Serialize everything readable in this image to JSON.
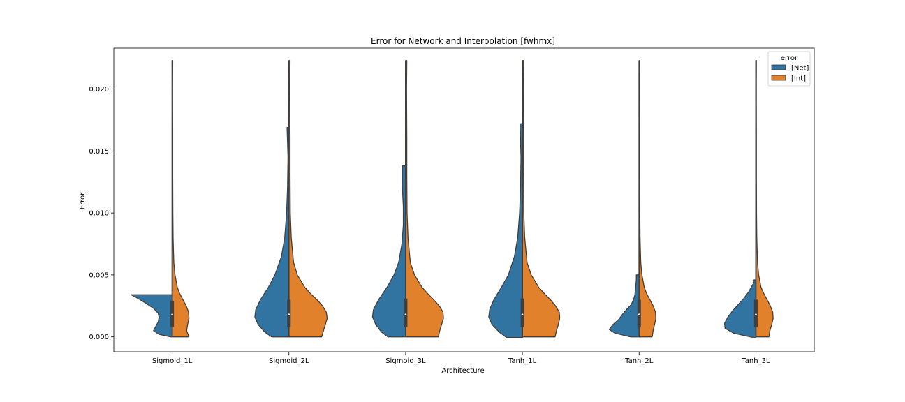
{
  "chart_data": {
    "type": "violin",
    "title": "Error for Network and Interpolation [fwhmx]",
    "xlabel": "Architecture",
    "ylabel": "Error",
    "ylim": [
      -0.0012,
      0.0233
    ],
    "yticks": [
      "0.000",
      "0.005",
      "0.010",
      "0.015",
      "0.020"
    ],
    "ytick_values": [
      0,
      0.005,
      0.01,
      0.015,
      0.02
    ],
    "categories": [
      "Sigmoid_1L",
      "Sigmoid_2L",
      "Sigmoid_3L",
      "Tanh_1L",
      "Tanh_2L",
      "Tanh_3L"
    ],
    "split": true,
    "grid": false,
    "legend": {
      "title": "error",
      "position": "top-right"
    },
    "series": [
      {
        "name": "[Net]",
        "color": "#3274a1",
        "violins": [
          {
            "min": 0.0,
            "max": 0.0034,
            "q1": 0.0008,
            "median": 0.0018,
            "q3": 0.0029,
            "profile": [
              [
                0.0,
                0.03
              ],
              [
                0.0002,
                0.28
              ],
              [
                0.0005,
                0.4
              ],
              [
                0.0008,
                0.36
              ],
              [
                0.0012,
                0.3
              ],
              [
                0.0016,
                0.28
              ],
              [
                0.0019,
                0.3
              ],
              [
                0.0023,
                0.4
              ],
              [
                0.0027,
                0.56
              ],
              [
                0.0031,
                0.73
              ],
              [
                0.0034,
                0.88
              ],
              [
                0.0034,
                0.0
              ]
            ]
          },
          {
            "min": 0.0,
            "max": 0.0169,
            "q1": 0.0008,
            "median": 0.0018,
            "q3": 0.003,
            "profile": [
              [
                0.0,
                0.37
              ],
              [
                0.0004,
                0.52
              ],
              [
                0.001,
                0.66
              ],
              [
                0.0016,
                0.73
              ],
              [
                0.0022,
                0.71
              ],
              [
                0.003,
                0.61
              ],
              [
                0.004,
                0.44
              ],
              [
                0.005,
                0.3
              ],
              [
                0.0065,
                0.16
              ],
              [
                0.008,
                0.09
              ],
              [
                0.01,
                0.05
              ],
              [
                0.012,
                0.03
              ],
              [
                0.0145,
                0.02
              ],
              [
                0.0169,
                0.04
              ],
              [
                0.0169,
                0.0
              ]
            ]
          },
          {
            "min": 0.0,
            "max": 0.0138,
            "q1": 0.0008,
            "median": 0.0018,
            "q3": 0.0031,
            "profile": [
              [
                0.0,
                0.38
              ],
              [
                0.0004,
                0.52
              ],
              [
                0.001,
                0.64
              ],
              [
                0.0016,
                0.71
              ],
              [
                0.0022,
                0.69
              ],
              [
                0.003,
                0.58
              ],
              [
                0.004,
                0.4
              ],
              [
                0.005,
                0.25
              ],
              [
                0.006,
                0.15
              ],
              [
                0.0075,
                0.08
              ],
              [
                0.009,
                0.05
              ],
              [
                0.0105,
                0.05
              ],
              [
                0.012,
                0.07
              ],
              [
                0.0133,
                0.07
              ],
              [
                0.0138,
                0.07
              ],
              [
                0.0138,
                0.0
              ]
            ]
          },
          {
            "min": -5e-05,
            "max": 0.0172,
            "q1": 0.0008,
            "median": 0.0018,
            "q3": 0.0031,
            "profile": [
              [
                -5e-05,
                0.34
              ],
              [
                0.0004,
                0.5
              ],
              [
                0.001,
                0.65
              ],
              [
                0.0016,
                0.72
              ],
              [
                0.0022,
                0.7
              ],
              [
                0.003,
                0.61
              ],
              [
                0.004,
                0.45
              ],
              [
                0.005,
                0.3
              ],
              [
                0.0065,
                0.17
              ],
              [
                0.008,
                0.1
              ],
              [
                0.01,
                0.06
              ],
              [
                0.012,
                0.04
              ],
              [
                0.0145,
                0.03
              ],
              [
                0.0172,
                0.05
              ],
              [
                0.0172,
                0.0
              ]
            ]
          },
          {
            "min": 0.0,
            "max": 0.005,
            "q1": 0.0008,
            "median": 0.0018,
            "q3": 0.003,
            "profile": [
              [
                0.0,
                0.18
              ],
              [
                0.0003,
                0.52
              ],
              [
                0.0006,
                0.64
              ],
              [
                0.001,
                0.56
              ],
              [
                0.0014,
                0.44
              ],
              [
                0.0018,
                0.36
              ],
              [
                0.0022,
                0.27
              ],
              [
                0.0026,
                0.17
              ],
              [
                0.003,
                0.12
              ],
              [
                0.0034,
                0.09
              ],
              [
                0.0038,
                0.08
              ],
              [
                0.0042,
                0.07
              ],
              [
                0.0046,
                0.06
              ],
              [
                0.005,
                0.06
              ],
              [
                0.005,
                0.0
              ]
            ]
          },
          {
            "min": -3e-05,
            "max": 0.0046,
            "q1": 0.0008,
            "median": 0.0018,
            "q3": 0.003,
            "profile": [
              [
                -3e-05,
                0.08
              ],
              [
                0.0003,
                0.48
              ],
              [
                0.0007,
                0.66
              ],
              [
                0.0011,
                0.67
              ],
              [
                0.0016,
                0.6
              ],
              [
                0.0021,
                0.5
              ],
              [
                0.0026,
                0.38
              ],
              [
                0.0031,
                0.26
              ],
              [
                0.0036,
                0.16
              ],
              [
                0.004,
                0.1
              ],
              [
                0.0044,
                0.04
              ],
              [
                0.0046,
                0.04
              ],
              [
                0.0046,
                0.0
              ]
            ]
          }
        ]
      },
      {
        "name": "[Int]",
        "color": "#e1812c",
        "violins": [
          {
            "min": 0.0,
            "max": 0.0223,
            "q1": 0.0008,
            "median": 0.0018,
            "q3": 0.0029,
            "profile": [
              [
                0.0,
                0.36
              ],
              [
                0.0005,
                0.31
              ],
              [
                0.001,
                0.33
              ],
              [
                0.0015,
                0.36
              ],
              [
                0.002,
                0.35
              ],
              [
                0.0025,
                0.3
              ],
              [
                0.003,
                0.23
              ],
              [
                0.0035,
                0.16
              ],
              [
                0.004,
                0.11
              ],
              [
                0.005,
                0.06
              ],
              [
                0.006,
                0.035
              ],
              [
                0.008,
                0.02
              ],
              [
                0.01,
                0.015
              ],
              [
                0.013,
                0.012
              ],
              [
                0.016,
                0.012
              ],
              [
                0.02,
                0.01
              ],
              [
                0.0223,
                0.012
              ],
              [
                0.0223,
                0.0
              ]
            ]
          },
          {
            "min": 0.0,
            "max": 0.0223,
            "q1": 0.0008,
            "median": 0.0018,
            "q3": 0.003,
            "profile": [
              [
                0.0,
                0.7
              ],
              [
                0.0005,
                0.74
              ],
              [
                0.001,
                0.78
              ],
              [
                0.0015,
                0.82
              ],
              [
                0.002,
                0.8
              ],
              [
                0.0025,
                0.72
              ],
              [
                0.003,
                0.6
              ],
              [
                0.0035,
                0.46
              ],
              [
                0.004,
                0.34
              ],
              [
                0.005,
                0.18
              ],
              [
                0.006,
                0.1
              ],
              [
                0.008,
                0.05
              ],
              [
                0.01,
                0.03
              ],
              [
                0.013,
                0.025
              ],
              [
                0.016,
                0.025
              ],
              [
                0.02,
                0.02
              ],
              [
                0.0223,
                0.025
              ],
              [
                0.0223,
                0.0
              ]
            ]
          },
          {
            "min": 0.0,
            "max": 0.0223,
            "q1": 0.0008,
            "median": 0.0018,
            "q3": 0.0031,
            "profile": [
              [
                0.0,
                0.7
              ],
              [
                0.0005,
                0.73
              ],
              [
                0.001,
                0.77
              ],
              [
                0.0015,
                0.81
              ],
              [
                0.002,
                0.8
              ],
              [
                0.0025,
                0.72
              ],
              [
                0.003,
                0.6
              ],
              [
                0.0035,
                0.47
              ],
              [
                0.004,
                0.35
              ],
              [
                0.005,
                0.19
              ],
              [
                0.006,
                0.1
              ],
              [
                0.008,
                0.05
              ],
              [
                0.01,
                0.03
              ],
              [
                0.013,
                0.025
              ],
              [
                0.016,
                0.025
              ],
              [
                0.02,
                0.02
              ],
              [
                0.0223,
                0.025
              ],
              [
                0.0223,
                0.0
              ]
            ]
          },
          {
            "min": 0.0,
            "max": 0.0223,
            "q1": 0.0008,
            "median": 0.0018,
            "q3": 0.0031,
            "profile": [
              [
                0.0,
                0.7
              ],
              [
                0.0005,
                0.73
              ],
              [
                0.001,
                0.77
              ],
              [
                0.0015,
                0.8
              ],
              [
                0.002,
                0.79
              ],
              [
                0.0025,
                0.71
              ],
              [
                0.003,
                0.6
              ],
              [
                0.0035,
                0.47
              ],
              [
                0.004,
                0.35
              ],
              [
                0.005,
                0.19
              ],
              [
                0.006,
                0.1
              ],
              [
                0.008,
                0.05
              ],
              [
                0.01,
                0.03
              ],
              [
                0.013,
                0.025
              ],
              [
                0.016,
                0.025
              ],
              [
                0.02,
                0.02
              ],
              [
                0.0223,
                0.025
              ],
              [
                0.0223,
                0.0
              ]
            ]
          },
          {
            "min": 0.0,
            "max": 0.0223,
            "q1": 0.0008,
            "median": 0.0018,
            "q3": 0.003,
            "profile": [
              [
                0.0,
                0.28
              ],
              [
                0.0005,
                0.3
              ],
              [
                0.001,
                0.33
              ],
              [
                0.0015,
                0.36
              ],
              [
                0.002,
                0.35
              ],
              [
                0.0025,
                0.3
              ],
              [
                0.003,
                0.23
              ],
              [
                0.0035,
                0.16
              ],
              [
                0.004,
                0.11
              ],
              [
                0.005,
                0.06
              ],
              [
                0.006,
                0.035
              ],
              [
                0.008,
                0.02
              ],
              [
                0.01,
                0.015
              ],
              [
                0.013,
                0.012
              ],
              [
                0.016,
                0.012
              ],
              [
                0.02,
                0.01
              ],
              [
                0.0223,
                0.012
              ],
              [
                0.0223,
                0.0
              ]
            ]
          },
          {
            "min": 0.0,
            "max": 0.0223,
            "q1": 0.0008,
            "median": 0.0018,
            "q3": 0.003,
            "profile": [
              [
                0.0,
                0.28
              ],
              [
                0.0005,
                0.3
              ],
              [
                0.001,
                0.34
              ],
              [
                0.0015,
                0.37
              ],
              [
                0.002,
                0.36
              ],
              [
                0.0025,
                0.31
              ],
              [
                0.003,
                0.24
              ],
              [
                0.0035,
                0.17
              ],
              [
                0.004,
                0.11
              ],
              [
                0.005,
                0.06
              ],
              [
                0.006,
                0.035
              ],
              [
                0.008,
                0.02
              ],
              [
                0.01,
                0.015
              ],
              [
                0.013,
                0.012
              ],
              [
                0.016,
                0.012
              ],
              [
                0.02,
                0.01
              ],
              [
                0.0223,
                0.012
              ],
              [
                0.0223,
                0.0
              ]
            ]
          }
        ]
      }
    ]
  }
}
